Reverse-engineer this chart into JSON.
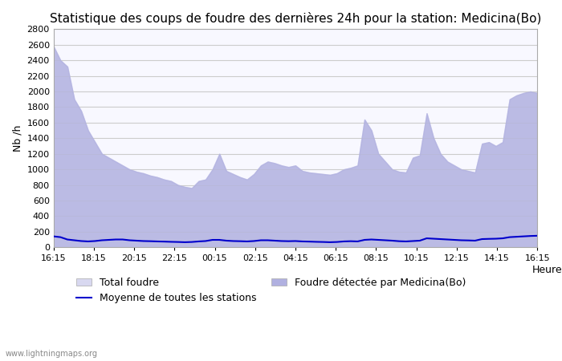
{
  "title": "Statistique des coups de foudre des dernières 24h pour la station: Medicina(Bo)",
  "xlabel": "Heure",
  "ylabel": "Nb /h",
  "watermark": "www.lightningmaps.org",
  "xlabels": [
    "16:15",
    "18:15",
    "20:15",
    "22:15",
    "00:15",
    "02:15",
    "04:15",
    "06:15",
    "08:15",
    "10:15",
    "12:15",
    "14:15",
    "16:15"
  ],
  "ylim": [
    0,
    2800
  ],
  "yticks": [
    0,
    200,
    400,
    600,
    800,
    1000,
    1200,
    1400,
    1600,
    1800,
    2000,
    2200,
    2400,
    2600,
    2800
  ],
  "bg_color": "#ffffff",
  "plot_bg_color": "#f8f8ff",
  "grid_color": "#cccccc",
  "total_foudre_color": "#d8d8f0",
  "foudre_detectee_color": "#b0b0e0",
  "moyenne_color": "#0000cc",
  "total_foudre_values": [
    2580,
    2400,
    2320,
    1900,
    1750,
    1500,
    1350,
    1200,
    1150,
    1100,
    1050,
    1000,
    970,
    950,
    920,
    900,
    870,
    850,
    800,
    775,
    760,
    850,
    870,
    1000,
    1200,
    980,
    940,
    900,
    870,
    940,
    1050,
    1100,
    1080,
    1050,
    1030,
    1050,
    980,
    960,
    950,
    940,
    930,
    950,
    1000,
    1020,
    1050,
    1640,
    1500,
    1200,
    1100,
    1000,
    970,
    960,
    1150,
    1180,
    1720,
    1400,
    1200,
    1100,
    1050,
    1000,
    980,
    960,
    1330,
    1350,
    1300,
    1350,
    1900,
    1950,
    1980,
    2000,
    1980
  ],
  "foudre_detectee_values": [
    2580,
    2400,
    2320,
    1900,
    1750,
    1500,
    1350,
    1200,
    1150,
    1100,
    1050,
    1000,
    970,
    950,
    920,
    900,
    870,
    850,
    800,
    775,
    760,
    850,
    870,
    1000,
    1200,
    980,
    940,
    900,
    870,
    940,
    1050,
    1100,
    1080,
    1050,
    1030,
    1050,
    980,
    960,
    950,
    940,
    930,
    950,
    1000,
    1020,
    1050,
    1640,
    1500,
    1200,
    1100,
    1000,
    970,
    960,
    1150,
    1180,
    1720,
    1400,
    1200,
    1100,
    1050,
    1000,
    980,
    960,
    1330,
    1350,
    1300,
    1350,
    1900,
    1950,
    1980,
    2000,
    1980
  ],
  "moyenne_values": [
    140,
    130,
    100,
    90,
    80,
    75,
    80,
    90,
    95,
    100,
    100,
    90,
    85,
    80,
    78,
    75,
    73,
    70,
    68,
    65,
    68,
    75,
    80,
    95,
    95,
    85,
    80,
    78,
    75,
    80,
    90,
    90,
    85,
    80,
    78,
    80,
    75,
    73,
    70,
    68,
    65,
    68,
    75,
    78,
    75,
    95,
    100,
    95,
    90,
    85,
    78,
    75,
    80,
    85,
    115,
    110,
    105,
    100,
    95,
    90,
    88,
    85,
    105,
    108,
    110,
    115,
    130,
    135,
    140,
    145,
    148
  ],
  "n_points": 71,
  "legend_entries": [
    "Total foudre",
    "Moyenne de toutes les stations",
    "Foudre détectée par Medicina(Bo)"
  ],
  "title_fontsize": 11,
  "label_fontsize": 9,
  "tick_fontsize": 8
}
